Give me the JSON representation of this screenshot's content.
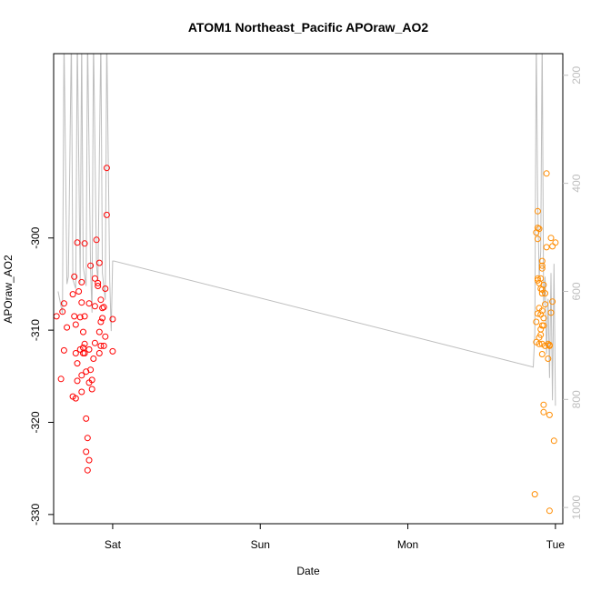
{
  "chart_data": {
    "type": "scatter",
    "title": "ATOM1 Northeast_Pacific APOraw_AO2",
    "xlabel": "Date",
    "ylabel": "APOraw_AO2",
    "x_ticks": [
      "Sat",
      "Sun",
      "Mon",
      "Tue"
    ],
    "x_tick_days": [
      1,
      2,
      3,
      4
    ],
    "xlim_days": [
      0.6,
      4.05
    ],
    "ylim": [
      -331,
      -280
    ],
    "y_ticks": [
      -330,
      -320,
      -310,
      -300
    ],
    "y_tick_labels": [
      "-330",
      "-320",
      "-310",
      "-300"
    ],
    "right_axis": {
      "ylim": [
        1030,
        160
      ],
      "ticks": [
        1000,
        800,
        600,
        400,
        200
      ],
      "tick_labels": [
        "1000",
        "800",
        "600",
        "400",
        "200"
      ],
      "color": "#bebebe"
    },
    "colors": {
      "series1": "#ff0000",
      "series2": "#ff8c00",
      "profile": "#bebebe"
    },
    "series": [
      {
        "color": "#ff0000",
        "x": [
          0.62,
          0.65,
          0.66,
          0.67,
          0.67,
          0.69,
          0.73,
          0.73,
          0.74,
          0.74,
          0.75,
          0.75,
          0.75,
          0.76,
          0.76,
          0.76,
          0.77,
          0.78,
          0.78,
          0.79,
          0.79,
          0.79,
          0.79,
          0.8,
          0.8,
          0.8,
          0.81,
          0.81,
          0.81,
          0.81,
          0.82,
          0.82,
          0.82,
          0.83,
          0.83,
          0.84,
          0.84,
          0.84,
          0.84,
          0.85,
          0.85,
          0.86,
          0.86,
          0.87,
          0.88,
          0.88,
          0.88,
          0.89,
          0.9,
          0.9,
          0.91,
          0.91,
          0.91,
          0.92,
          0.92,
          0.92,
          0.93,
          0.93,
          0.94,
          0.94,
          0.95,
          0.95,
          0.96,
          0.96,
          1.0,
          1.0
        ],
        "y": [
          -308.5,
          -315.3,
          -308.0,
          -307.1,
          -312.2,
          -309.7,
          -306.1,
          -317.2,
          -308.5,
          -304.2,
          -317.4,
          -312.5,
          -309.4,
          -300.5,
          -315.5,
          -313.6,
          -305.8,
          -308.6,
          -312.1,
          -316.7,
          -314.9,
          -307.0,
          -304.8,
          -311.9,
          -310.2,
          -312.5,
          -300.6,
          -308.5,
          -312.5,
          -311.5,
          -319.6,
          -314.5,
          -323.2,
          -321.7,
          -325.2,
          -324.1,
          -315.7,
          -307.1,
          -312.1,
          -303.0,
          -314.3,
          -316.4,
          -315.4,
          -313.1,
          -304.4,
          -307.4,
          -311.4,
          -300.2,
          -305.2,
          -304.9,
          -310.2,
          -312.5,
          -302.7,
          -311.7,
          -309.1,
          -306.7,
          -307.6,
          -308.7,
          -307.5,
          -311.7,
          -310.7,
          -305.5,
          -292.4,
          -297.5,
          -312.3,
          -308.8
        ]
      },
      {
        "color": "#ff8c00",
        "x": [
          3.86,
          3.87,
          3.87,
          3.87,
          3.88,
          3.88,
          3.88,
          3.88,
          3.88,
          3.88,
          3.89,
          3.89,
          3.89,
          3.89,
          3.89,
          3.9,
          3.9,
          3.9,
          3.9,
          3.9,
          3.91,
          3.91,
          3.91,
          3.91,
          3.91,
          3.91,
          3.91,
          3.91,
          3.91,
          3.92,
          3.92,
          3.92,
          3.92,
          3.92,
          3.93,
          3.93,
          3.93,
          3.94,
          3.94,
          3.95,
          3.95,
          3.96,
          3.96,
          3.96,
          3.96,
          3.97,
          3.97,
          3.98,
          3.98,
          3.99,
          4.0
        ],
        "y": [
          -327.8,
          -299.4,
          -309.1,
          -311.3,
          -297.1,
          -298.9,
          -300.1,
          -304.4,
          -304.6,
          -308.2,
          -299.0,
          -304.9,
          -307.6,
          -310.8,
          -311.5,
          -304.4,
          -305.5,
          -308.3,
          -309.9,
          -310.5,
          -302.5,
          -303.0,
          -303.3,
          -305.6,
          -306.0,
          -307.9,
          -309.5,
          -311.5,
          -312.6,
          -305.1,
          -308.7,
          -309.5,
          -318.1,
          -318.9,
          -306.0,
          -307.2,
          -311.7,
          -293.0,
          -301.0,
          -311.5,
          -313.1,
          -319.2,
          -329.6,
          -311.7,
          -311.6,
          -308.1,
          -300.0,
          -300.9,
          -306.9,
          -322.0,
          -300.5
        ]
      }
    ],
    "profile_line": {
      "color": "#bebebe",
      "x": [
        0.63,
        0.66,
        0.67,
        0.69,
        0.7,
        0.72,
        0.73,
        0.75,
        0.76,
        0.78,
        0.79,
        0.8,
        0.82,
        0.83,
        0.85,
        0.86,
        0.87,
        0.89,
        0.9,
        0.92,
        0.93,
        0.95,
        0.96,
        0.98,
        0.99,
        1.0,
        1.01,
        3.85,
        3.86,
        3.87,
        3.88,
        3.89,
        3.9,
        3.91,
        3.92,
        3.93,
        3.94,
        3.95,
        3.96,
        3.97,
        3.98,
        3.99,
        4.0
      ],
      "y": [
        -305.8,
        -308.2,
        -278.0,
        -305.0,
        -304.2,
        -278.0,
        -304.5,
        -305.5,
        -278.0,
        -304.9,
        -278.0,
        -303.1,
        -305.2,
        -278.0,
        -303.3,
        -308.1,
        -278.0,
        -302.9,
        -304.7,
        -278.0,
        -303.8,
        -306.7,
        -278.0,
        -304.7,
        -310.1,
        -302.5,
        -302.5,
        -314.0,
        -310.4,
        -278.0,
        -296.2,
        -304.2,
        -301.5,
        -278.0,
        -307.3,
        -304.2,
        -312.6,
        -306.6,
        -315.2,
        -303.8,
        -317.6,
        -302.8,
        -318.2
      ]
    }
  }
}
